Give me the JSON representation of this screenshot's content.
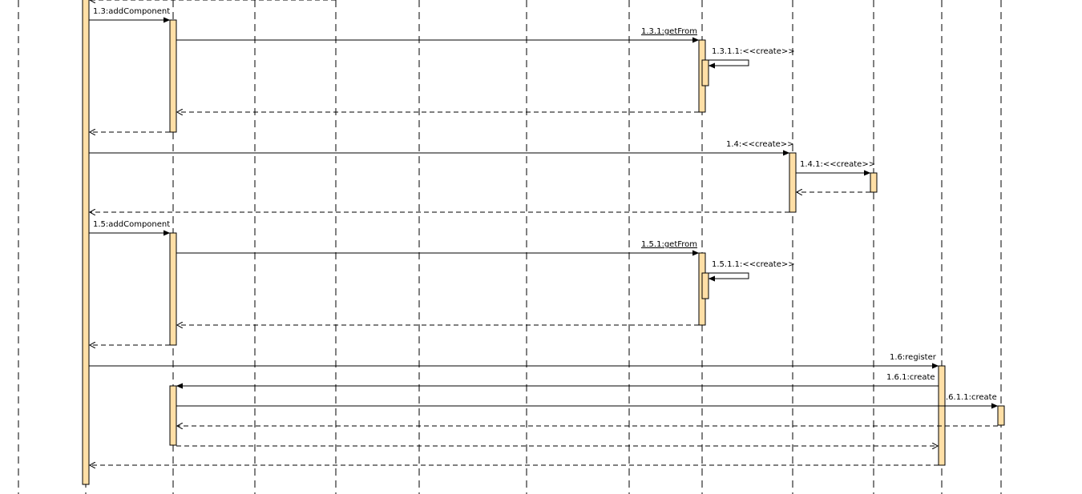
{
  "diagram": {
    "type": "uml-sequence",
    "lifeline_count": 13,
    "activation_fill": "#ffdfa6",
    "messages": [
      {
        "id": "m1",
        "label": "1.3:addComponent",
        "kind": "sync"
      },
      {
        "id": "m2",
        "label": "1.3.1:getFrom",
        "kind": "sync",
        "underline": true
      },
      {
        "id": "m3",
        "label": "1.3.1.1:<<create>>",
        "kind": "self"
      },
      {
        "id": "m4",
        "label": "1.4:<<create>>",
        "kind": "sync"
      },
      {
        "id": "m5",
        "label": "1.4.1:<<create>>",
        "kind": "sync"
      },
      {
        "id": "m6",
        "label": "1.5:addComponent",
        "kind": "sync"
      },
      {
        "id": "m7",
        "label": "1.5.1:getFrom",
        "kind": "sync",
        "underline": true
      },
      {
        "id": "m8",
        "label": "1.5.1.1:<<create>>",
        "kind": "self"
      },
      {
        "id": "m9",
        "label": "1.6:register",
        "kind": "sync"
      },
      {
        "id": "m10",
        "label": "1.6.1:create",
        "kind": "sync"
      },
      {
        "id": "m11",
        "label": ".6.1.1:create",
        "kind": "sync"
      }
    ]
  }
}
